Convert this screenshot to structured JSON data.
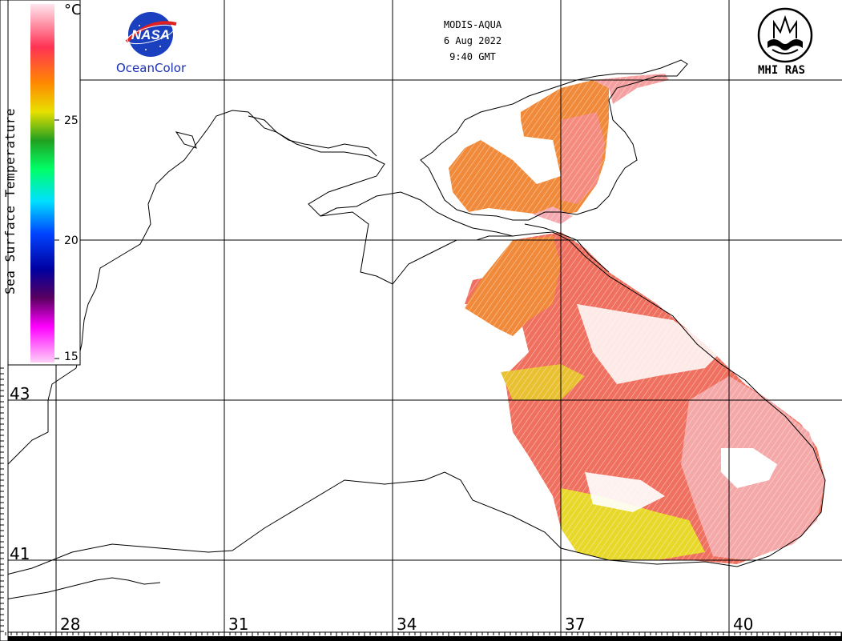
{
  "header": {
    "sensor": "MODIS-AQUA",
    "date": "6 Aug 2022",
    "time": "9:40 GMT"
  },
  "logos": {
    "nasa": {
      "text": "NASA",
      "caption": "OceanColor"
    },
    "institute": {
      "caption": "MHI RAS"
    }
  },
  "legend": {
    "title": "Sea Surface Temperature",
    "unit": "°C",
    "ticks": [
      "25",
      "20",
      "15"
    ],
    "colors_top_to_bottom": [
      "#ffe6ee",
      "#ff3355",
      "#ff8800",
      "#e8e000",
      "#22a020",
      "#00ff66",
      "#00e0ff",
      "#0044ff",
      "#0000a0",
      "#5a0060",
      "#ff00ff",
      "#ffd0f8"
    ]
  },
  "grid": {
    "latitude_labels": [
      "43",
      "41"
    ],
    "longitude_labels": [
      "28",
      "31",
      "34",
      "37",
      "40"
    ]
  },
  "colors": {
    "warm_sst": "#f26a6a",
    "hot_sst": "#f7b5b5",
    "orange_sst": "#f08a3a",
    "yellow_sst": "#e8d82a",
    "coastline": "#000000"
  }
}
